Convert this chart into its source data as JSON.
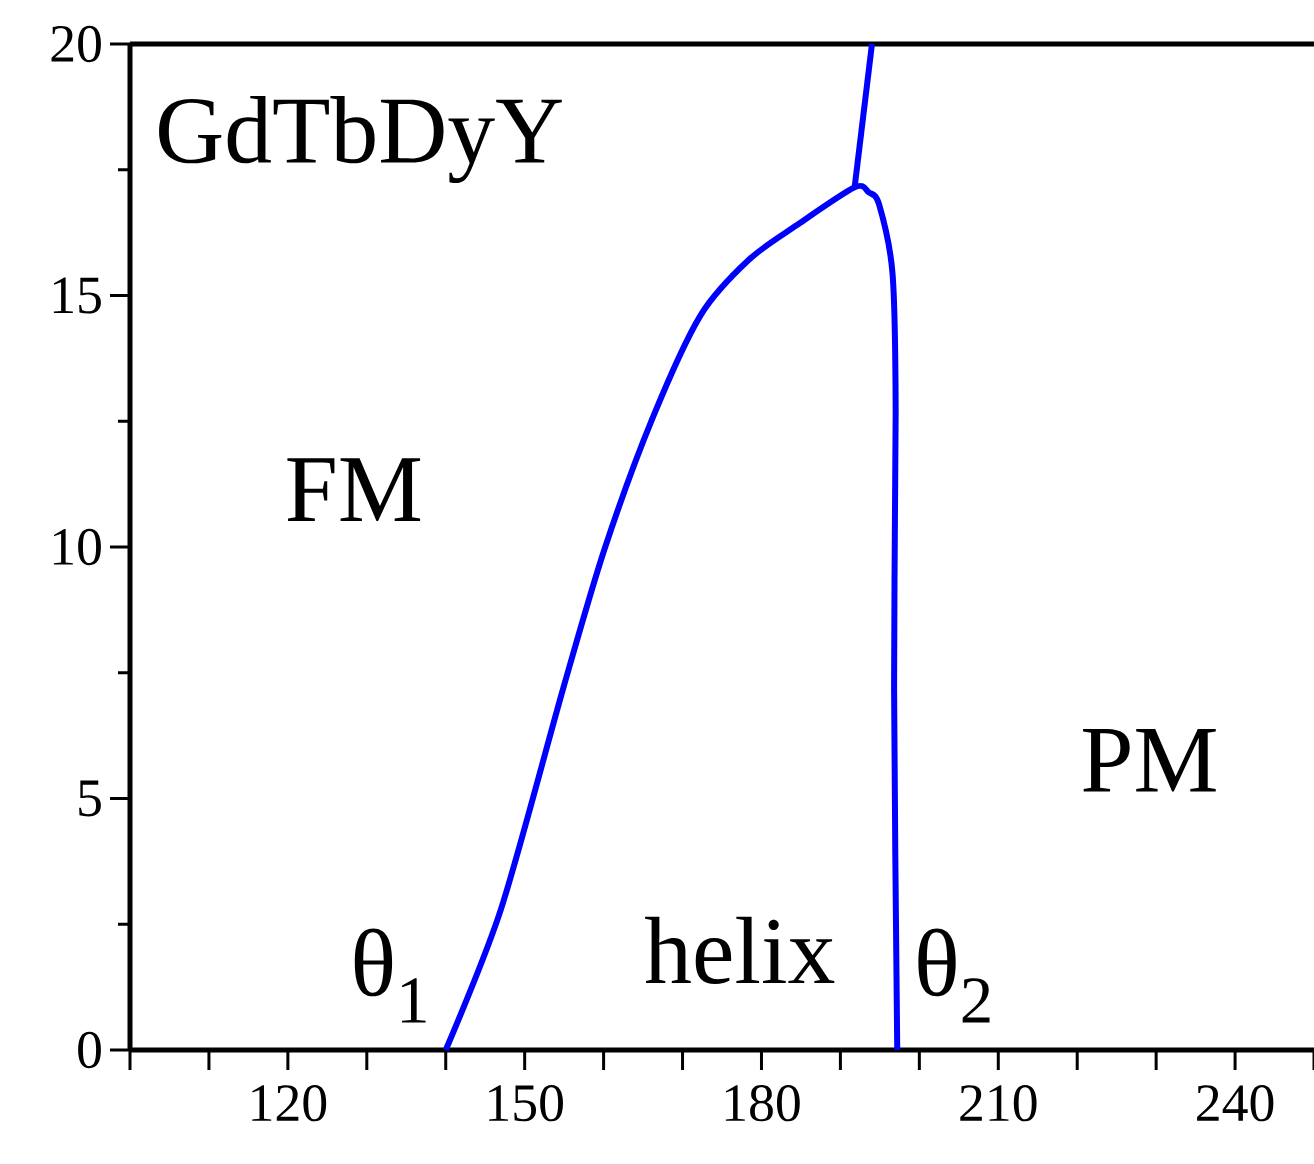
{
  "chart_data": {
    "type": "line",
    "xlim": [
      100,
      250
    ],
    "ylim": [
      0,
      20
    ],
    "xticks": [
      {
        "value": 100,
        "label": null
      },
      {
        "value": 110,
        "label": null
      },
      120,
      {
        "value": 130,
        "label": null
      },
      {
        "value": 140,
        "label": null
      },
      150,
      {
        "value": 160,
        "label": null
      },
      {
        "value": 170,
        "label": null
      },
      180,
      {
        "value": 190,
        "label": null
      },
      {
        "value": 200,
        "label": null
      },
      210,
      {
        "value": 220,
        "label": null
      },
      {
        "value": 230,
        "label": null
      },
      240,
      {
        "value": 250,
        "label": null
      }
    ],
    "yticks": [
      0,
      5,
      10,
      15,
      20
    ],
    "series": [
      {
        "color": "#0000ff",
        "x": [
          140,
          147,
          154.9,
          160.1,
          166.2,
          172.3,
          178.4,
          184.5,
          191.8,
          193.6,
          194.9,
          196.6,
          197,
          196.8,
          197.2
        ],
        "values": [
          0,
          2.8,
          7.2,
          9.95,
          12.56,
          14.61,
          15.71,
          16.4,
          17.15,
          17.05,
          16.81,
          15.44,
          12.7,
          7.2,
          0
        ]
      },
      {
        "color": "#0000ff",
        "x": [
          191.8,
          194
        ],
        "values": [
          17.15,
          20
        ]
      }
    ],
    "annotations": [
      "GdTbDyY",
      "FM",
      "PM",
      "helix",
      "θ$_{1}$",
      "θ$_{2}$"
    ]
  }
}
